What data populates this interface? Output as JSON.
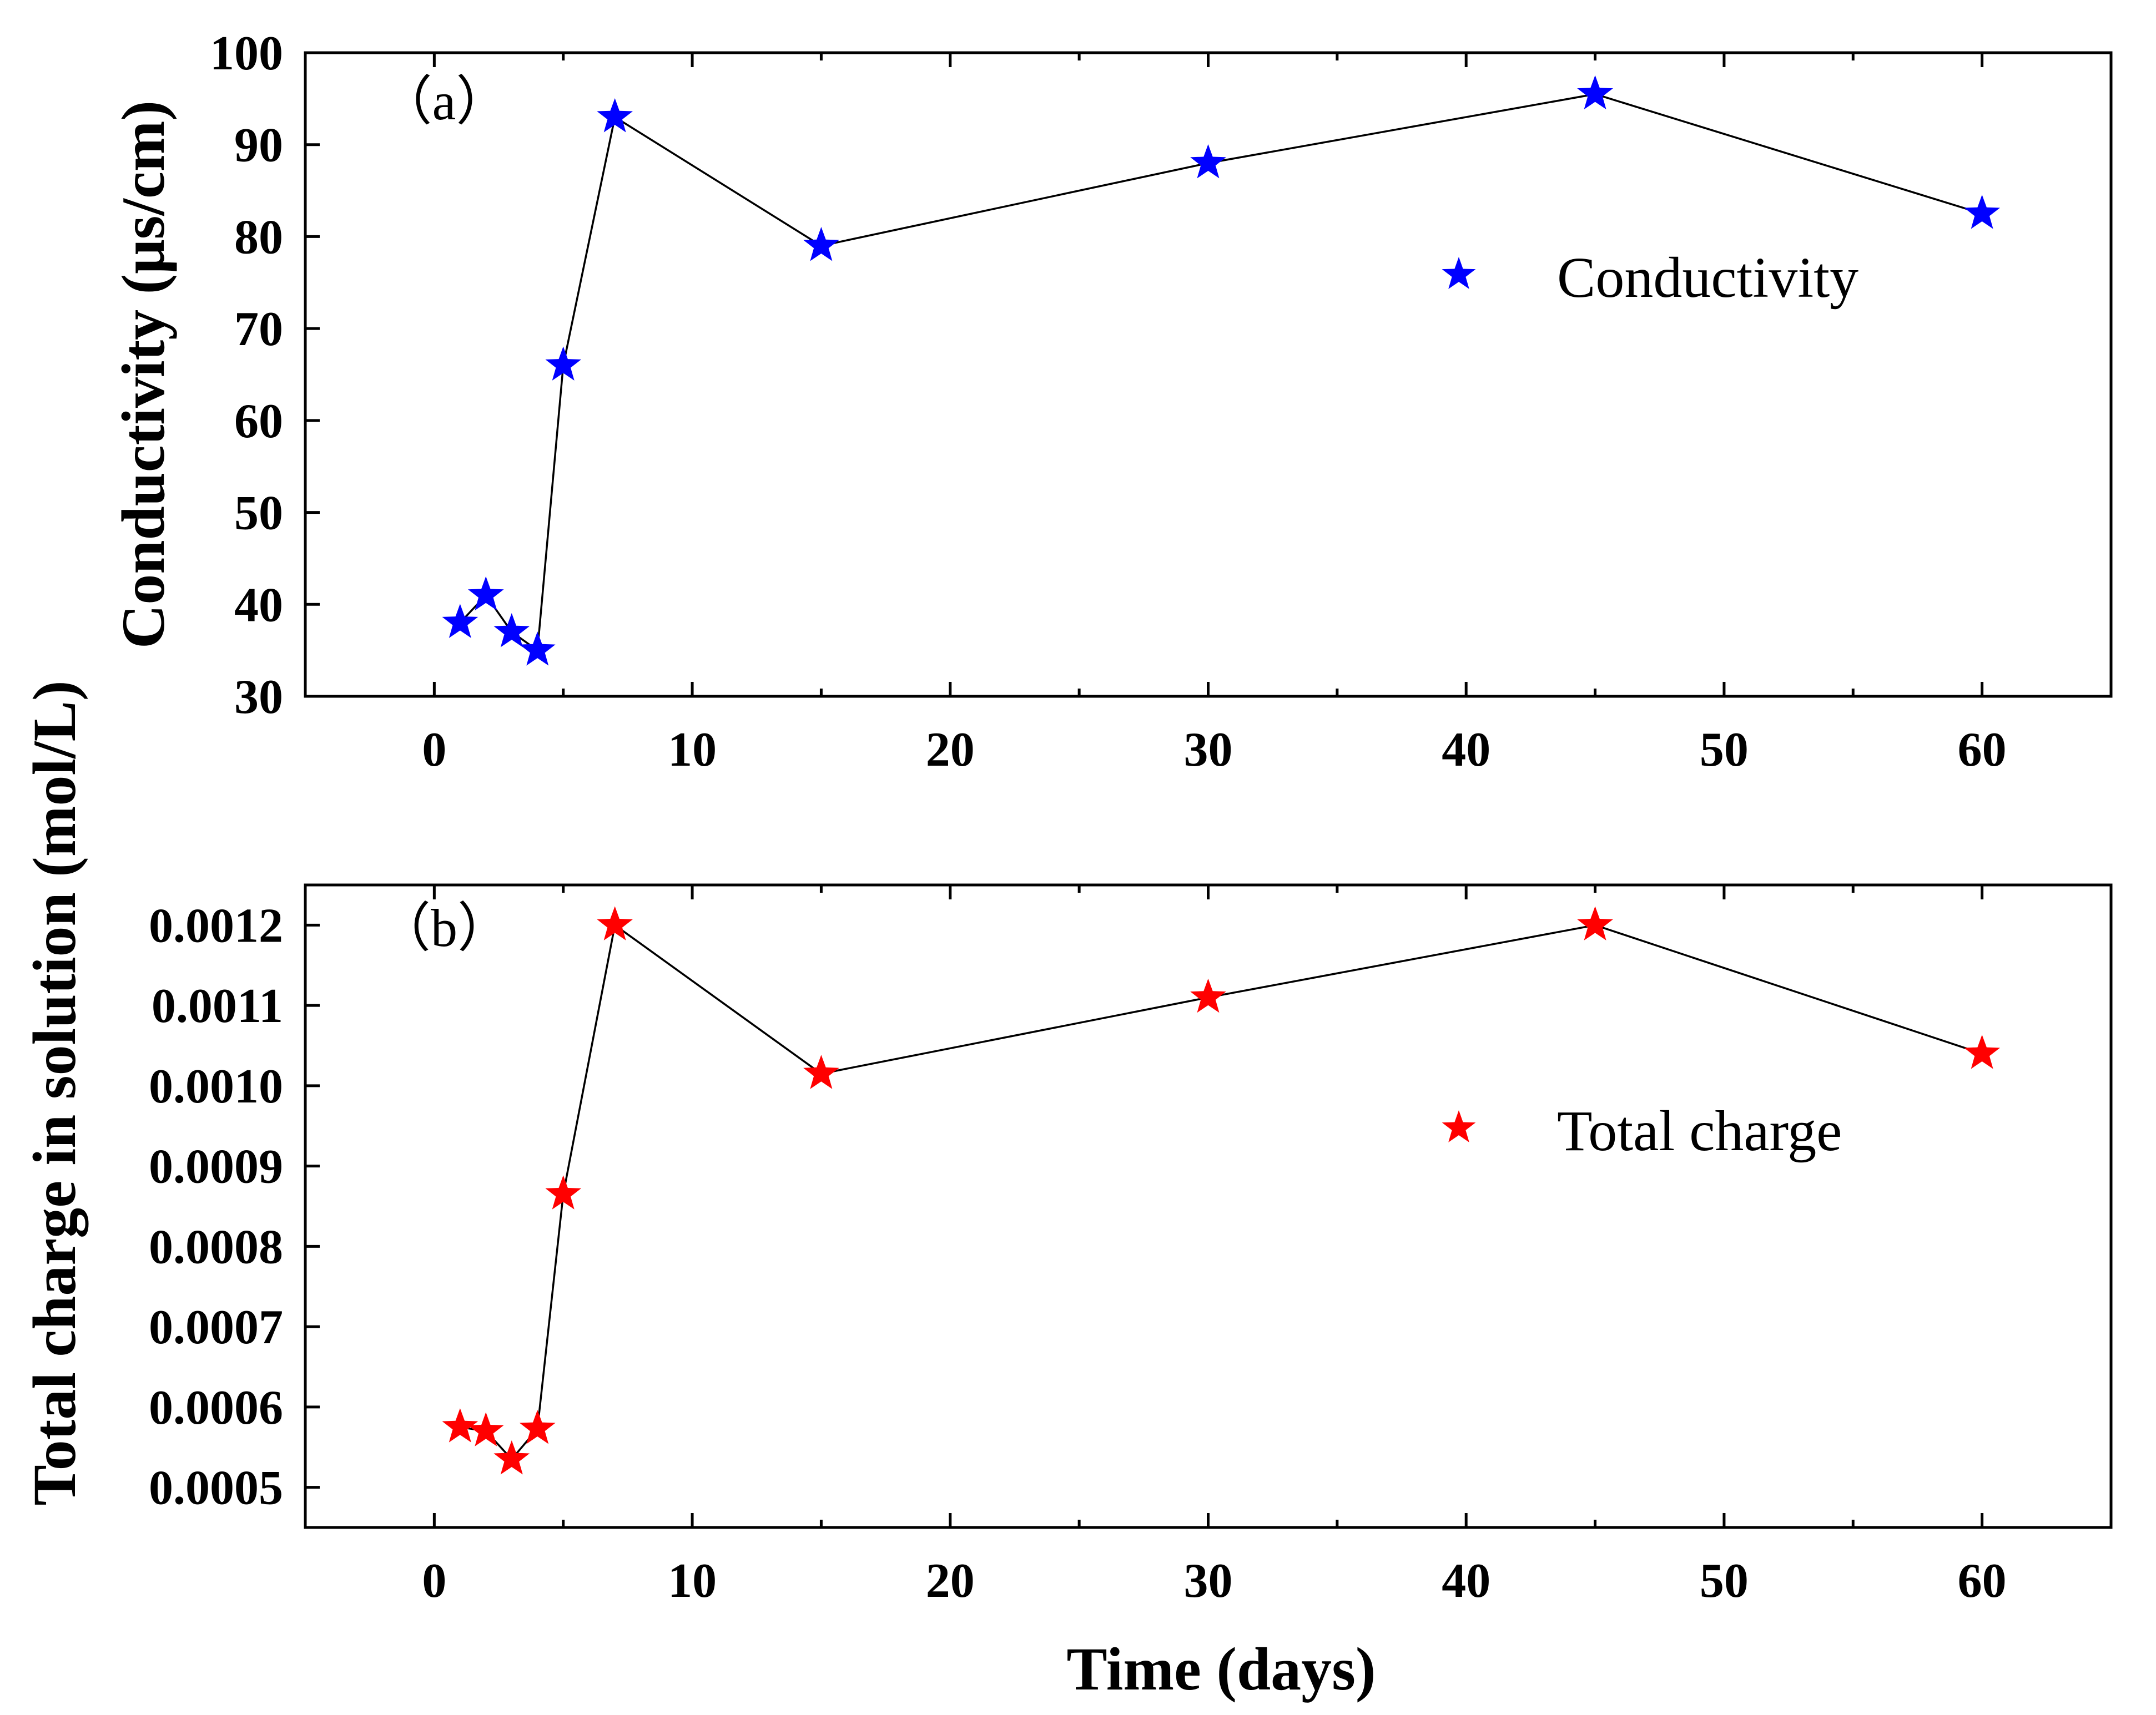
{
  "figure": {
    "xlabel": "Time (days)"
  },
  "chart_data": [
    {
      "type": "line",
      "panel_label": "（a）",
      "ylabel": "Conductivity (μs/cm)",
      "xlim": [
        -5,
        65
      ],
      "ylim": [
        30,
        100
      ],
      "xticks": [
        0,
        10,
        20,
        30,
        40,
        50,
        60
      ],
      "yticks": [
        30,
        40,
        50,
        60,
        70,
        80,
        90,
        100
      ],
      "ytick_labels": [
        "30",
        "40",
        "50",
        "60",
        "70",
        "80",
        "90",
        "100"
      ],
      "xtick_labels": [
        "0",
        "10",
        "20",
        "30",
        "40",
        "50",
        "60"
      ],
      "legend_position": "right",
      "series": [
        {
          "name": "Conductivity",
          "color": "#0000ff",
          "marker": "star",
          "x": [
            1,
            2,
            3,
            4,
            5,
            7,
            15,
            30,
            45,
            60
          ],
          "y": [
            38,
            41,
            37,
            35,
            66,
            93,
            79,
            88,
            95.5,
            82.5
          ]
        }
      ]
    },
    {
      "type": "line",
      "panel_label": "（b）",
      "ylabel": "Total charge in solution (mol/L)",
      "xlim": [
        -5,
        65
      ],
      "ylim": [
        0.00045,
        0.00125
      ],
      "xticks": [
        0,
        10,
        20,
        30,
        40,
        50,
        60
      ],
      "yticks": [
        0.0005,
        0.0006,
        0.0007,
        0.0008,
        0.0009,
        0.001,
        0.0011,
        0.0012
      ],
      "ytick_labels": [
        "0.0005",
        "0.0006",
        "0.0007",
        "0.0008",
        "0.0009",
        "0.0010",
        "0.0011",
        "0.0012"
      ],
      "xtick_labels": [
        "0",
        "10",
        "20",
        "30",
        "40",
        "50",
        "60"
      ],
      "legend_position": "right",
      "series": [
        {
          "name": "Total charge",
          "color": "#ff0000",
          "marker": "star",
          "x": [
            1,
            2,
            3,
            4,
            5,
            7,
            15,
            30,
            45,
            60
          ],
          "y": [
            0.000575,
            0.00057,
            0.000535,
            0.000573,
            0.000865,
            0.0012,
            0.001015,
            0.00111,
            0.0012,
            0.00104
          ]
        }
      ]
    }
  ]
}
